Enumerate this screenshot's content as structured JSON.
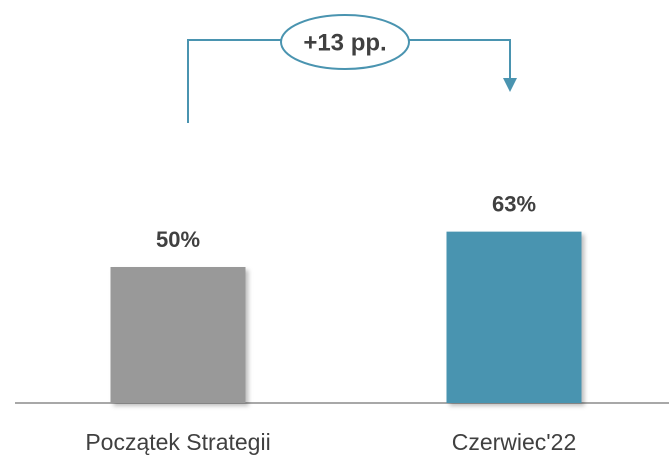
{
  "chart_data": {
    "type": "bar",
    "annotation": "+13 pp.",
    "categories": [
      "Początek Strategii",
      "Czerwiec'22"
    ],
    "values": [
      50,
      63
    ],
    "value_labels": [
      "50%",
      "63%"
    ],
    "colors": [
      "#999999",
      "#4a94b0"
    ]
  }
}
